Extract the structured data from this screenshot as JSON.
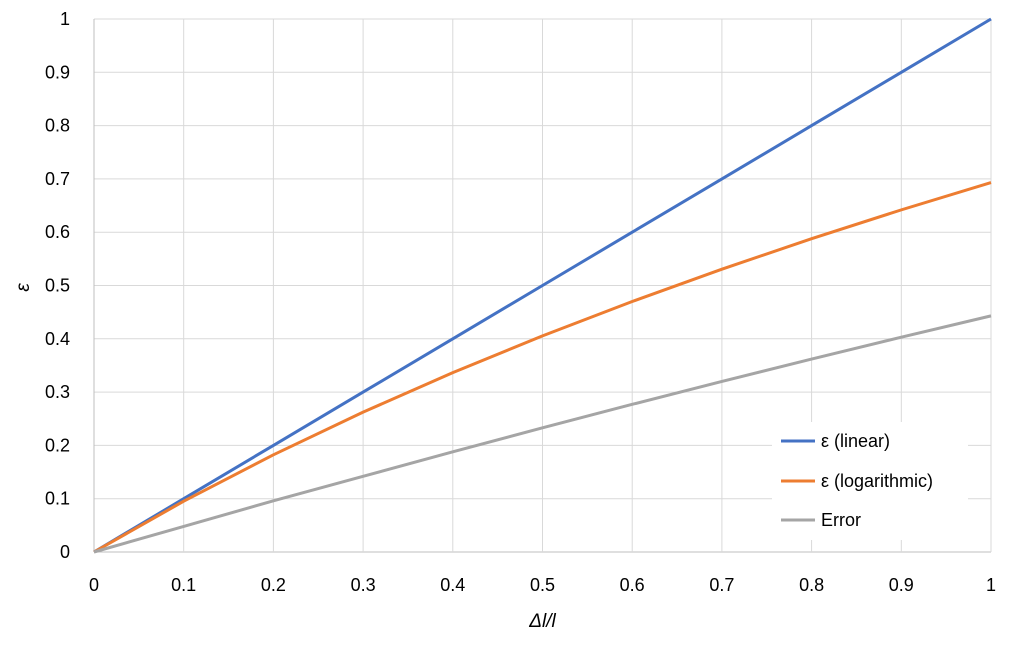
{
  "chart_data": {
    "type": "line",
    "xlabel": "Δl/l",
    "ylabel": "ε",
    "xlim": [
      0,
      1
    ],
    "ylim": [
      0,
      1
    ],
    "x_ticks": [
      "0",
      "0.1",
      "0.2",
      "0.3",
      "0.4",
      "0.5",
      "0.6",
      "0.7",
      "0.8",
      "0.9",
      "1"
    ],
    "y_ticks": [
      "0",
      "0.1",
      "0.2",
      "0.3",
      "0.4",
      "0.5",
      "0.6",
      "0.7",
      "0.8",
      "0.9",
      "1"
    ],
    "grid": true,
    "legend_position": "bottom-right",
    "x": [
      0,
      0.1,
      0.2,
      0.3,
      0.4,
      0.5,
      0.6,
      0.7,
      0.8,
      0.9,
      1.0
    ],
    "series": [
      {
        "name": "ε (linear)",
        "color": "#4472C4",
        "values": [
          0,
          0.1,
          0.2,
          0.3,
          0.4,
          0.5,
          0.6,
          0.7,
          0.8,
          0.9,
          1.0
        ]
      },
      {
        "name": "ε (logarithmic)",
        "color": "#ED7D31",
        "values": [
          0,
          0.0953,
          0.1823,
          0.2624,
          0.3365,
          0.4055,
          0.47,
          0.5306,
          0.5878,
          0.6419,
          0.6931
        ]
      },
      {
        "name": "Error",
        "color": "#A5A5A5",
        "values": [
          0,
          0.048,
          0.096,
          0.142,
          0.188,
          0.233,
          0.277,
          0.32,
          0.362,
          0.403,
          0.443
        ]
      }
    ]
  }
}
